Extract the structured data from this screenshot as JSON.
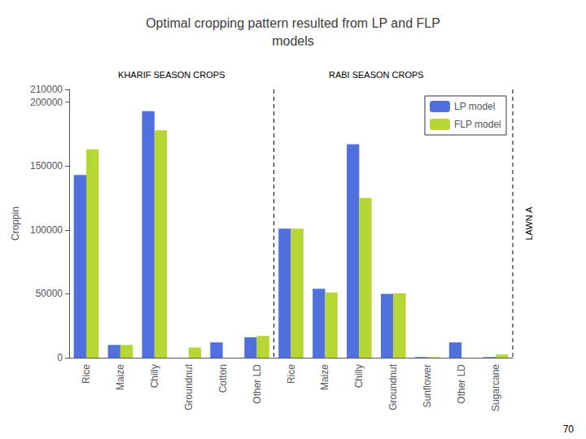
{
  "chart_data": {
    "type": "bar",
    "title": "Optimal cropping pattern resulted from LP and FLP\nmodels",
    "ylabel": "Croppin",
    "annotations": [
      "KHARIF SEASON CROPS",
      "RABI SEASON CROPS",
      "LAWN A",
      "70"
    ],
    "categories": [
      "Rice",
      "Maize",
      "Chilly",
      "Groundnut",
      "Cotton",
      "Other LD",
      "Rice",
      "Maize",
      "Chilly",
      "Groundnut",
      "Sunflower",
      "Other LD",
      "Sugarcane"
    ],
    "series": [
      {
        "name": "LP model",
        "values": [
          143000,
          10000,
          193000,
          0,
          12000,
          16000,
          101000,
          54000,
          167000,
          50000,
          500,
          12000,
          500
        ]
      },
      {
        "name": "FLP model",
        "values": [
          163000,
          10000,
          178000,
          8000,
          0,
          17000,
          101000,
          51000,
          125000,
          50500,
          500,
          0,
          2500
        ]
      }
    ],
    "ylim": [
      0,
      210000
    ],
    "yticks": [
      0,
      50000,
      100000,
      150000,
      200000
    ],
    "grid": false,
    "legend": "upper right"
  }
}
